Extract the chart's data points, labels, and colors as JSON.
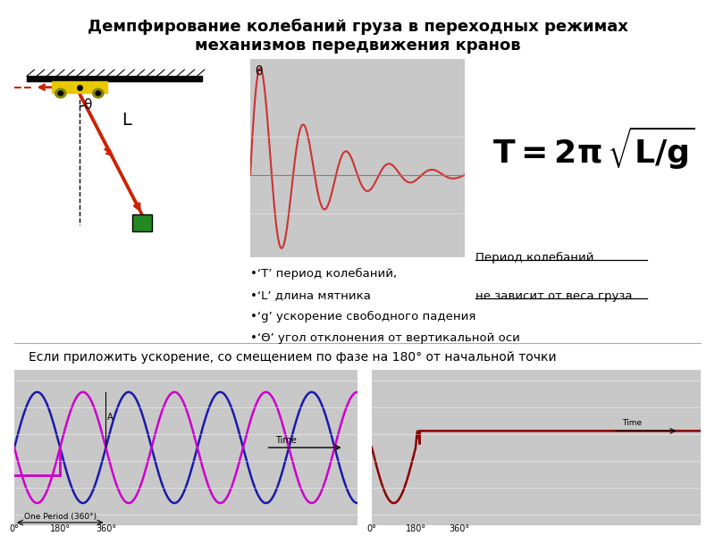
{
  "title": "Демпфирование колебаний груза в переходных режимах\nмеханизмов передвижения кранов",
  "title_fontsize": 13,
  "bg_color": "#ffffff",
  "panel_bg": "#c8c8c8",
  "subtitle_text": "Если приложить ускорение, со смещением по фазе на 180° от начальной точки",
  "bullet_lines": [
    "•‘T’ период колебаний,",
    "•‘L’ длина мятника",
    "•‘g’ ускорение свободного падения",
    "•‘Θ’ угол отклонения от вертикальной оси"
  ],
  "underline_line1": "Период колебаний",
  "underline_line2": "не зависит от веса груза",
  "damped_color": "#cc3333",
  "sine_color_blue": "#1a1aaa",
  "sine_color_magenta": "#cc00cc",
  "result_color": "#8b0000"
}
